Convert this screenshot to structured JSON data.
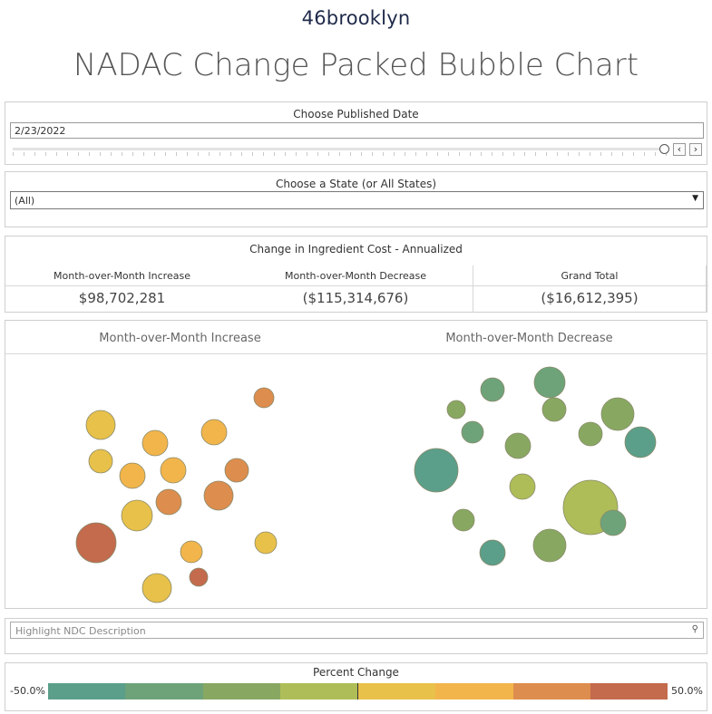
{
  "brand": "46brooklyn",
  "page_title": "NADAC Change Packed Bubble Chart",
  "date_filter": {
    "label": "Choose Published Date",
    "value": "2/23/2022",
    "slider_position_fraction": 1.0
  },
  "state_filter": {
    "label": "Choose a State (or All States)",
    "value": "(All)"
  },
  "summary_table": {
    "title": "Change in Ingredient Cost - Annualized",
    "columns": [
      {
        "header": "Month-over-Month Increase",
        "value": "$98,702,281"
      },
      {
        "header": "Month-over-Month Decrease",
        "value": "($115,314,676)"
      },
      {
        "header": "Grand Total",
        "value": "($16,612,395)"
      }
    ]
  },
  "bubble_chart": {
    "left_header": "Month-over-Month Increase",
    "right_header": "Month-over-Month Decrease"
  },
  "highlight": {
    "placeholder": "Highlight NDC Description"
  },
  "legend": {
    "title": "Percent Change",
    "min_label": "-50.0%",
    "max_label": "50.0%",
    "colors": [
      "#5b9f8a",
      "#6ea37a",
      "#88a862",
      "#aebd58",
      "#e8c14a",
      "#f2b54b",
      "#dd8d4e",
      "#c46a4d"
    ]
  },
  "icons": {
    "prev": "chevron-left-icon",
    "next": "chevron-right-icon",
    "dropdown": "caret-down-icon",
    "search": "magnifier-icon"
  },
  "chart_data": {
    "type": "packed-bubble",
    "groups": [
      "Month-over-Month Increase",
      "Month-over-Month Decrease"
    ],
    "color_scale": {
      "min": -50.0,
      "max": 50.0,
      "unit": "%"
    }
  }
}
